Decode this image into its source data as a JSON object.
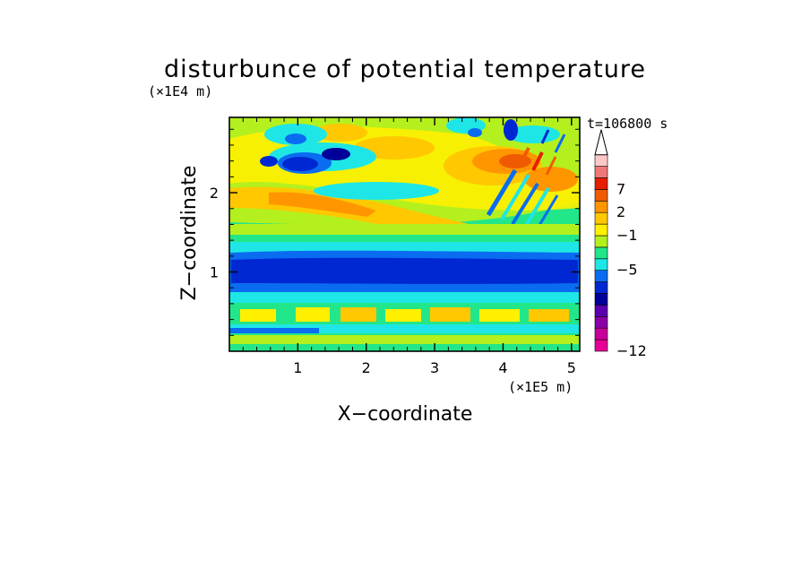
{
  "chart_data": {
    "type": "heatmap",
    "title": "disturbunce of potential temperature",
    "time_label": "t=106800 s",
    "xlabel": "X−coordinate",
    "ylabel": "Z−coordinate",
    "x_scale_label": "(×1E5 m)",
    "y_scale_label": "(×1E4 m)",
    "xlim": [
      0,
      5.12
    ],
    "ylim": [
      0,
      2.95
    ],
    "x_ticks": [
      "1",
      "2",
      "3",
      "4",
      "5"
    ],
    "y_ticks": [
      "1",
      "2"
    ],
    "colorbar": {
      "colors": [
        "#e60096",
        "#c8009a",
        "#8a00a6",
        "#5a00b0",
        "#00009a",
        "#0028d2",
        "#0a6cf0",
        "#1ee6e6",
        "#22e68a",
        "#b4f01e",
        "#fff000",
        "#ffc800",
        "#ff9600",
        "#f05a00",
        "#e61e00",
        "#f07878",
        "#ffc8c8"
      ],
      "tick_labels": [
        {
          "value": "7",
          "index": 14
        },
        {
          "value": "2",
          "index": 12
        },
        {
          "value": "−1",
          "index": 10
        },
        {
          "value": "−5",
          "index": 7
        },
        {
          "value": "−12",
          "index": 0
        }
      ],
      "extend": "max"
    }
  }
}
